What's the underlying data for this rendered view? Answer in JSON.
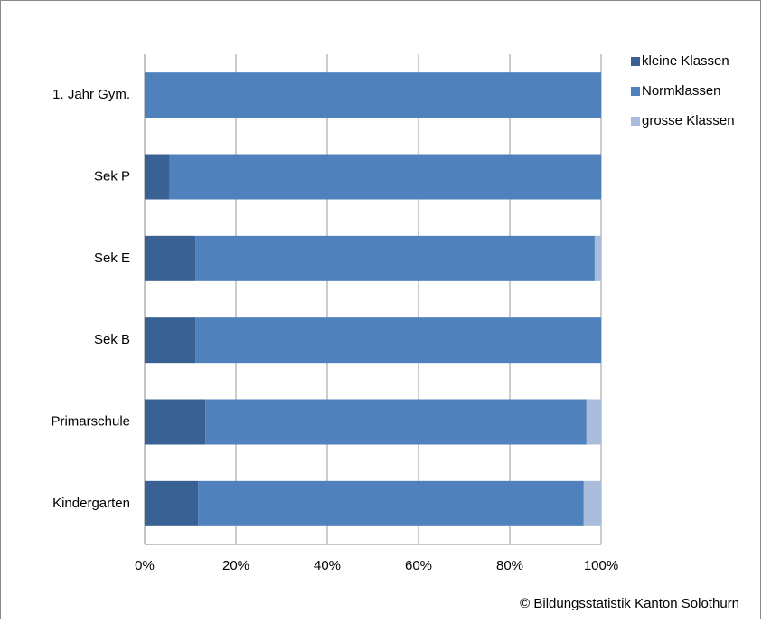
{
  "chart_data": {
    "type": "stacked-barh",
    "categories": [
      "1. Jahr Gym.",
      "Sek P",
      "Sek E",
      "Sek B",
      "Primarschule",
      "Kindergarten"
    ],
    "series": [
      {
        "name": "kleine Klassen",
        "color": "#3a6193",
        "values": [
          0,
          5.5,
          11.1,
          11.1,
          13.3,
          11.7
        ]
      },
      {
        "name": "Normklassen",
        "color": "#4f81bd",
        "values": [
          100,
          94.5,
          87.5,
          88.9,
          83.5,
          84.5
        ]
      },
      {
        "name": "grosse Klassen",
        "color": "#a9bcdc",
        "values": [
          0,
          0,
          1.4,
          0,
          3.2,
          3.8
        ]
      }
    ],
    "xlim": [
      0,
      100
    ],
    "xticks": [
      {
        "value": 0,
        "label": "0%"
      },
      {
        "value": 20,
        "label": "20%"
      },
      {
        "value": 40,
        "label": "40%"
      },
      {
        "value": 60,
        "label": "60%"
      },
      {
        "value": 80,
        "label": "80%"
      },
      {
        "value": 100,
        "label": "100%"
      }
    ],
    "grid": true,
    "legend": "right",
    "source": "© Bildungsstatistik Kanton Solothurn"
  }
}
